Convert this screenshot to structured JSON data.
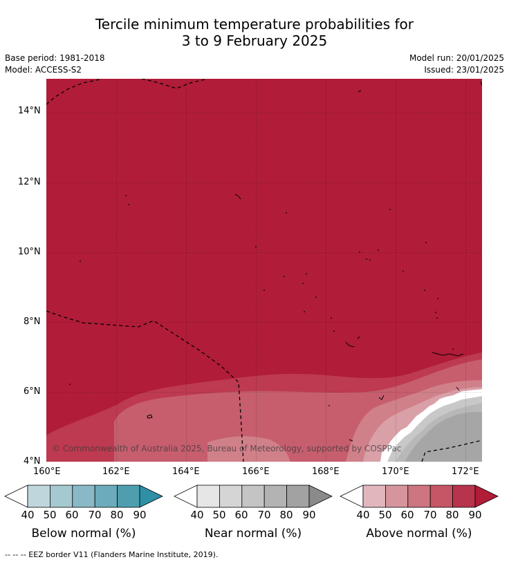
{
  "title_line1": "Tercile minimum temperature probabilities for",
  "title_line2": "3 to 9 February 2025",
  "meta": {
    "base_period": "Base period: 1981-2018",
    "model": "Model: ACCESS-S2",
    "model_run": "Model run: 20/01/2025",
    "issued": "Issued: 23/01/2025"
  },
  "map": {
    "x_ticks": [
      "160°E",
      "162°E",
      "164°E",
      "166°E",
      "168°E",
      "170°E",
      "172°E"
    ],
    "y_ticks": [
      "14°N",
      "12°N",
      "10°N",
      "8°N",
      "6°N",
      "4°N"
    ],
    "lon_range": [
      160,
      172.5
    ],
    "lat_range": [
      4,
      15
    ],
    "attribution": "© Commonwealth of Australia 2025, Bureau of Meteorology, supported by COSPPac",
    "colors": {
      "above_90": "#b11c38",
      "above_80": "#bd3a50",
      "above_70": "#c65e6e",
      "above_60": "#d08089",
      "above_50": "#d9a0a8",
      "near_90": "#a6a6a6",
      "near_80": "#b8b8b8",
      "near_70": "#c8c8c8",
      "white": "#ffffff"
    }
  },
  "legend": {
    "ticks": [
      "40",
      "50",
      "60",
      "70",
      "80",
      "90"
    ],
    "below": {
      "label": "Below normal (%)",
      "colors": [
        "#ffffff",
        "#bfd6dd",
        "#a6c9d1",
        "#89b9c6",
        "#6cabbb",
        "#4e9eb0",
        "#2e8fa5"
      ]
    },
    "near": {
      "label": "Near normal (%)",
      "colors": [
        "#ffffff",
        "#e6e6e6",
        "#d5d5d5",
        "#c4c4c4",
        "#b3b3b3",
        "#a2a2a2",
        "#8a8a8a"
      ]
    },
    "above": {
      "label": "Above normal (%)",
      "colors": [
        "#ffffff",
        "#e2b6bd",
        "#d6959d",
        "#cd7580",
        "#c65566",
        "#b8344c",
        "#b11c38"
      ]
    }
  },
  "footnote": "-- -- -- EEZ border V11 (Flanders Marine Institute, 2019)."
}
